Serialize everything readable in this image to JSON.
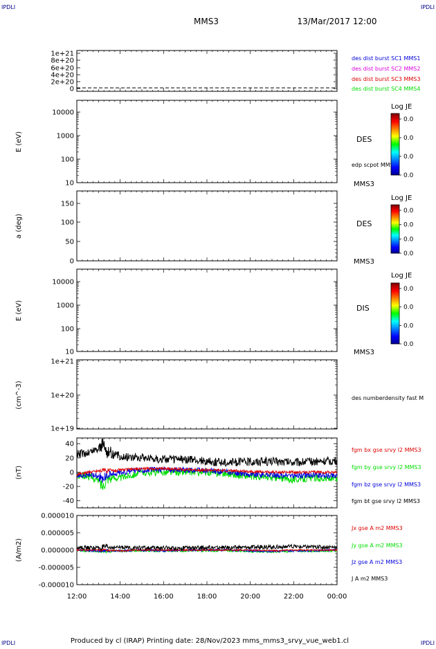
{
  "header": {
    "corner_tl": "IPDLI",
    "corner_tr": "IPDLI",
    "title": "MMS3",
    "datetime": "13/Mar/2017 12:00"
  },
  "footer": {
    "text": "Produced by cl (IRAP)   Printing date: 28/Nov/2023   mms_mms3_srvy_vue_web1.cl",
    "corner_bl": "IPDLI",
    "corner_br": "IPDLI"
  },
  "colors": {
    "black": "#000000",
    "red": "#dd0000",
    "green": "#00dd00",
    "blue": "#0000dd",
    "magenta": "#dd00dd",
    "navy": "#000088"
  },
  "chart_data": [
    {
      "type": "line",
      "id": "des-dist-burst",
      "ylabel": "",
      "yticks": [
        "1e+21",
        "8e+20",
        "6e+20",
        "4e+20",
        "2e+20",
        "0"
      ],
      "legend": [
        {
          "label": "des dist burst SC1 MMS1",
          "color": "#0000dd"
        },
        {
          "label": "des dist burst SC2 MMS2",
          "color": "#dd00dd"
        },
        {
          "label": "des dist burst SC3 MMS3",
          "color": "#dd0000"
        },
        {
          "label": "des dist burst SC4 MMS4",
          "color": "#00dd00"
        }
      ],
      "series": [
        {
          "values": [
            0,
            0
          ]
        }
      ]
    },
    {
      "type": "heatmap",
      "id": "des-energy",
      "ylabel": "E (eV)",
      "yscale": "log",
      "yticks": [
        "10000",
        "1000",
        "100",
        "10"
      ],
      "label": "DES",
      "sublabel": "MMS3",
      "legend": [
        {
          "label": "edp scpot MMS3",
          "color": "#000000"
        }
      ],
      "colorbar": {
        "title": "Log JE",
        "ticks": [
          "0.0",
          "0.0",
          "0.0",
          "0.0"
        ]
      }
    },
    {
      "type": "heatmap",
      "id": "des-pitch",
      "ylabel": "a (deg)",
      "yticks": [
        "150",
        "100",
        "50",
        "0"
      ],
      "label": "DES",
      "sublabel": "MMS3",
      "colorbar": {
        "title": "Log JE",
        "ticks": [
          "0.0",
          "0.0",
          "0.0",
          "0.0"
        ]
      }
    },
    {
      "type": "heatmap",
      "id": "dis-energy",
      "ylabel": "E (eV)",
      "yscale": "log",
      "yticks": [
        "10000",
        "1000",
        "100",
        "10"
      ],
      "label": "DIS",
      "sublabel": "MMS3",
      "colorbar": {
        "title": "Log JE",
        "ticks": [
          "0.0",
          "0.0",
          "0.0",
          "0.0"
        ]
      }
    },
    {
      "type": "line",
      "id": "des-density",
      "ylabel": "(cm^-3)",
      "yscale": "log",
      "yticks": [
        "1e+21",
        "1e+20",
        "1e+19"
      ],
      "legend": [
        {
          "label": "des numberdensity fast M",
          "color": "#000000"
        }
      ]
    },
    {
      "type": "line",
      "id": "fgm",
      "ylabel": "(nT)",
      "yticks": [
        "40",
        "20",
        "0",
        "-20",
        "-40"
      ],
      "ylim": [
        -50,
        48
      ],
      "legend": [
        {
          "label": "fgm bx gse srvy l2 MMS3",
          "color": "#dd0000"
        },
        {
          "label": "fgm by gse srvy l2 MMS3",
          "color": "#00dd00"
        },
        {
          "label": "fgm bz gse srvy l2 MMS3",
          "color": "#0000dd"
        },
        {
          "label": "fgm bt gse srvy l2 MMS3",
          "color": "#000000"
        }
      ],
      "x": [
        12.0,
        12.5,
        13.0,
        13.2,
        13.4,
        14.0,
        15.0,
        16.0,
        17.0,
        18.0,
        19.0,
        20.0,
        21.0,
        22.0,
        23.0,
        24.0
      ],
      "series": [
        {
          "values": [
            25,
            27,
            33,
            40,
            28,
            22,
            21,
            18,
            18,
            15,
            14,
            15,
            15,
            14,
            15,
            16
          ],
          "color": "#000000"
        },
        {
          "values": [
            -3,
            0,
            2,
            3,
            2,
            3,
            5,
            5,
            4,
            3,
            2,
            1,
            0,
            0,
            0,
            0
          ],
          "color": "#dd0000"
        },
        {
          "values": [
            -5,
            -3,
            -5,
            -10,
            -4,
            0,
            3,
            4,
            3,
            2,
            0,
            -3,
            -4,
            -5,
            -4,
            -5
          ],
          "color": "#0000dd"
        },
        {
          "values": [
            -5,
            -5,
            -12,
            -20,
            -8,
            -8,
            0,
            0,
            0,
            0,
            -2,
            -6,
            -8,
            -10,
            -8,
            -10
          ],
          "color": "#00dd00"
        }
      ]
    },
    {
      "type": "line",
      "id": "current-density",
      "ylabel": "(A/m2)",
      "yticks": [
        "0.000010",
        "0.000005",
        "0.000000",
        "-0.000005",
        "-0.000010"
      ],
      "ylim": [
        -1e-05,
        1e-05
      ],
      "legend": [
        {
          "label": "Jx gse A m2 MMS3",
          "color": "#dd0000"
        },
        {
          "label": "Jy gse A m2 MMS3",
          "color": "#00dd00"
        },
        {
          "label": "Jz gse A m2 MMS3",
          "color": "#0000dd"
        },
        {
          "label": "J A m2 MMS3",
          "color": "#000000"
        }
      ],
      "x": [
        12.0,
        13.0,
        14.0,
        15.0,
        16.0,
        17.0,
        18.0,
        19.0,
        20.0,
        21.0,
        22.0,
        23.0,
        24.0
      ],
      "series": [
        {
          "values": [
            6e-07,
            7e-07,
            8e-07,
            6e-07,
            6e-07,
            6e-07,
            7e-07,
            7e-07,
            8e-07,
            9e-07,
            1e-06,
            9e-07,
            9e-07
          ],
          "color": "#000000"
        },
        {
          "values": [
            0,
            0,
            -2e-07,
            0,
            0,
            0,
            0,
            0,
            0,
            -2e-07,
            0,
            0,
            0
          ],
          "color": "#dd0000"
        },
        {
          "values": [
            0,
            -2e-07,
            -3e-07,
            0,
            -2e-07,
            0,
            0,
            0,
            -2e-07,
            -3e-07,
            -2e-07,
            -2e-07,
            0
          ],
          "color": "#0000dd"
        },
        {
          "values": [
            -2e-07,
            -4e-07,
            -3e-07,
            -2e-07,
            -3e-07,
            -2e-07,
            -2e-07,
            -2e-07,
            -4e-07,
            -5e-07,
            -3e-07,
            -3e-07,
            -2e-07
          ],
          "color": "#00dd00"
        }
      ]
    }
  ],
  "x_axis": {
    "ticks": [
      "12:00",
      "14:00",
      "16:00",
      "18:00",
      "20:00",
      "22:00",
      "00:00"
    ],
    "values": [
      12,
      14,
      16,
      18,
      20,
      22,
      24
    ]
  }
}
